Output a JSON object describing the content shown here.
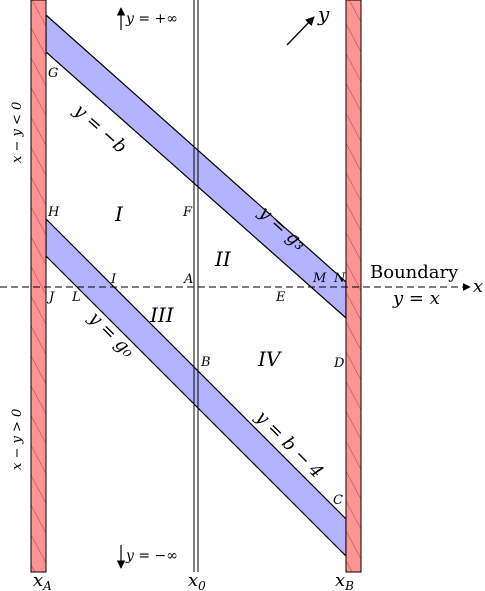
{
  "region_labels": {
    "I": "I",
    "II": "II",
    "III": "III",
    "IV": "IV"
  },
  "point_labels": {
    "G": "G",
    "H": "H",
    "F": "F",
    "I": "I",
    "A": "A",
    "J": "J",
    "L": "L",
    "E": "E",
    "M": "M",
    "N": "N",
    "B": "B",
    "D": "D",
    "C": "C"
  },
  "line_labels": {
    "y_minus_b": "y = −b",
    "y_g3": "y = g₃",
    "y_g0": "y = g₀",
    "y_b_minus_4": "y = b − 4"
  },
  "boundary": {
    "title": "Boundary",
    "equation": "y = x"
  },
  "axis_labels": {
    "x": "x",
    "y": "y"
  },
  "top_label": "y = +∞",
  "bottom_label": "y = −∞",
  "side_labels": {
    "upper": "x − y < 0",
    "lower": "x − y > 0"
  },
  "bottom_ticks": {
    "xA": "x",
    "xA_sub": "A",
    "x0": "x",
    "x0_sub": "0",
    "xB": "x",
    "xB_sub": "B"
  },
  "colors": {
    "band_fill": "#b3b3ff",
    "wall_fill": "#ff9494",
    "wall_hatch": "#c24a4a"
  }
}
